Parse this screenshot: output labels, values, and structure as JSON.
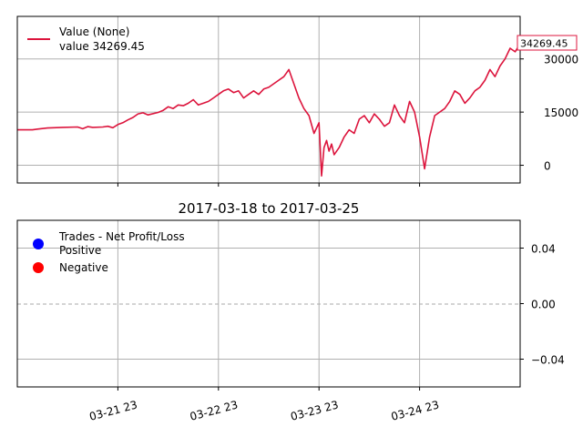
{
  "chart_data": [
    {
      "type": "line",
      "panel": "broker-value",
      "title": "",
      "series": [
        {
          "name": "Value (None)",
          "color": "#dc143c",
          "x_fraction": [
            0.0,
            0.03,
            0.04,
            0.06,
            0.09,
            0.12,
            0.13,
            0.14,
            0.15,
            0.17,
            0.18,
            0.19,
            0.2,
            0.21,
            0.22,
            0.23,
            0.24,
            0.25,
            0.26,
            0.28,
            0.29,
            0.3,
            0.31,
            0.32,
            0.33,
            0.34,
            0.35,
            0.36,
            0.37,
            0.38,
            0.39,
            0.4,
            0.41,
            0.42,
            0.43,
            0.44,
            0.45,
            0.46,
            0.47,
            0.48,
            0.49,
            0.5,
            0.51,
            0.52,
            0.53,
            0.54,
            0.55,
            0.56,
            0.57,
            0.58,
            0.59,
            0.6,
            0.605,
            0.61,
            0.615,
            0.62,
            0.625,
            0.63,
            0.64,
            0.65,
            0.66,
            0.67,
            0.68,
            0.69,
            0.7,
            0.71,
            0.72,
            0.73,
            0.74,
            0.75,
            0.76,
            0.77,
            0.78,
            0.79,
            0.8,
            0.81,
            0.82,
            0.83,
            0.84,
            0.85,
            0.86,
            0.87,
            0.88,
            0.89,
            0.9,
            0.91,
            0.92,
            0.93,
            0.94,
            0.95,
            0.96,
            0.97,
            0.98,
            0.99,
            1.0
          ],
          "values": [
            10000,
            10000,
            10200,
            10500,
            10700,
            10800,
            10300,
            10900,
            10700,
            10800,
            11000,
            10600,
            11500,
            12000,
            12800,
            13500,
            14500,
            14800,
            14200,
            14900,
            15500,
            16500,
            16000,
            17000,
            16800,
            17500,
            18500,
            17000,
            17500,
            18000,
            19000,
            20000,
            21000,
            21500,
            20500,
            21000,
            19000,
            20000,
            21000,
            20000,
            21500,
            22000,
            23000,
            24000,
            25000,
            27000,
            23000,
            19000,
            16000,
            14000,
            9000,
            12000,
            -3000,
            5000,
            7000,
            4000,
            6000,
            3000,
            5000,
            8000,
            10000,
            9000,
            13000,
            14000,
            12000,
            14500,
            13000,
            11000,
            12000,
            17000,
            14000,
            12000,
            18000,
            15000,
            8000,
            -1000,
            8000,
            14000,
            15000,
            16000,
            18000,
            21000,
            20000,
            17500,
            19000,
            21000,
            22000,
            24000,
            27000,
            25000,
            28000,
            30000,
            33000,
            32000,
            34269.45
          ],
          "last_value_label": "34269.45"
        }
      ],
      "legend": {
        "line1": "Value (None)",
        "line2": "value 34269.45",
        "placement": "upper-left"
      },
      "yticks": [
        0,
        15000,
        30000
      ],
      "ytick_labels": [
        "0",
        "15000",
        "30000"
      ],
      "ylim": [
        -5000,
        42000
      ],
      "grid": true,
      "axis_side": "right"
    },
    {
      "type": "scatter",
      "panel": "trades-pnl",
      "title": "2017-03-18 to 2017-03-25",
      "series": [
        {
          "name": "Trades - Net Profit/Loss\nPositive",
          "color": "#0000ff",
          "values": []
        },
        {
          "name": "Negative",
          "color": "#ff0000",
          "values": []
        }
      ],
      "legend": {
        "positive": "Trades - Net Profit/Loss\nPositive",
        "negative": "Negative",
        "placement": "upper-left"
      },
      "yticks": [
        0.04,
        0.0,
        -0.04
      ],
      "ytick_labels": [
        "0.04",
        "0.00",
        "−0.04"
      ],
      "ylim": [
        -0.06,
        0.06
      ],
      "grid": true,
      "zero_line": "dashed",
      "axis_side": "right"
    }
  ],
  "x_axis": {
    "tick_labels": [
      "03-21 23",
      "03-22 23",
      "03-23 23",
      "03-24 23"
    ],
    "tick_fraction": [
      0.2,
      0.4,
      0.6,
      0.8
    ],
    "label_rotation_deg": -15
  }
}
